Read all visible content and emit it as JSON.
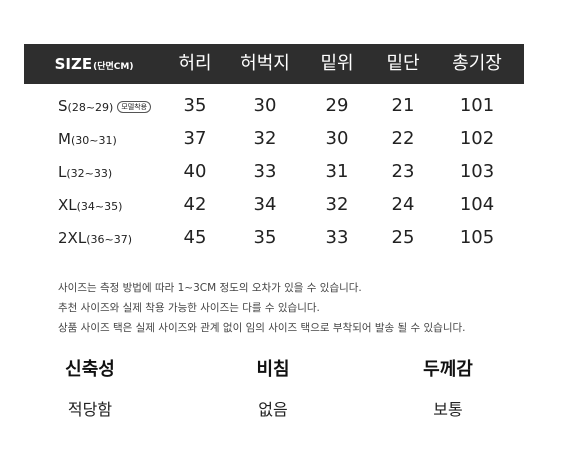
{
  "header": {
    "size_label": "SIZE",
    "size_unit": "(단면CM)",
    "columns": [
      "허리",
      "허벅지",
      "밑위",
      "밑단",
      "총기장"
    ]
  },
  "rows": [
    {
      "size": "S",
      "range": "(28~29)",
      "badge": "모델착용",
      "values": [
        "35",
        "30",
        "29",
        "21",
        "101"
      ]
    },
    {
      "size": "M",
      "range": "(30~31)",
      "values": [
        "37",
        "32",
        "30",
        "22",
        "102"
      ]
    },
    {
      "size": "L",
      "range": "(32~33)",
      "values": [
        "40",
        "33",
        "31",
        "23",
        "103"
      ]
    },
    {
      "size": "XL",
      "range": "(34~35)",
      "values": [
        "42",
        "34",
        "32",
        "24",
        "104"
      ]
    },
    {
      "size": "2XL",
      "range": "(36~37)",
      "values": [
        "45",
        "35",
        "33",
        "25",
        "105"
      ]
    }
  ],
  "notes": [
    "사이즈는 측정 방법에 따라 1~3CM 정도의 오차가 있을 수 있습니다.",
    "추천 사이즈와 실제 착용 가능한 사이즈는 다를 수 있습니다.",
    "상품 사이즈 택은 실제 사이즈와 관계 없이 임의 사이즈 택으로 부착되어 발송 될 수 있습니다."
  ],
  "properties": [
    {
      "title": "신축성",
      "value": "적당함"
    },
    {
      "title": "비침",
      "value": "없음"
    },
    {
      "title": "두께감",
      "value": "보통"
    }
  ]
}
